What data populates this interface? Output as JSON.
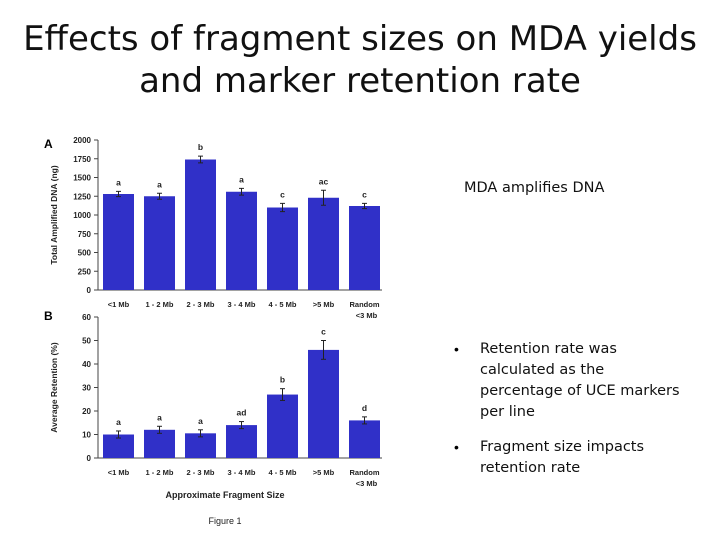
{
  "slide": {
    "title_line1": "Effects of fragment sizes on MDA yields",
    "title_line2": "and marker retention rate",
    "note_mda": "MDA amplifies DNA",
    "bullets": [
      "Retention rate was calculated as the percentage of UCE markers per line",
      "Fragment size impacts retention rate"
    ],
    "bullet_symbol": "•",
    "figure_caption": "Figure 1",
    "bar_color": "#3030c8"
  },
  "chart_data": [
    {
      "type": "bar",
      "panel": "A",
      "categories": [
        "<1 Mb",
        "1 - 2 Mb",
        "2 - 3 Mb",
        "3 - 4 Mb",
        "4 - 5 Mb",
        ">5 Mb",
        "Random <3 Mb"
      ],
      "category_lines": [
        [
          "<1 Mb"
        ],
        [
          "1 - 2 Mb"
        ],
        [
          "2 - 3 Mb"
        ],
        [
          "3 - 4 Mb"
        ],
        [
          "4 - 5 Mb"
        ],
        [
          ">5 Mb"
        ],
        [
          "Random",
          "<3 Mb"
        ]
      ],
      "values": [
        1280,
        1250,
        1740,
        1310,
        1100,
        1230,
        1120
      ],
      "errors": [
        35,
        40,
        45,
        45,
        55,
        100,
        35
      ],
      "letters": [
        "a",
        "a",
        "b",
        "a",
        "c",
        "ac",
        "c"
      ],
      "ylabel": "Total Amplified DNA (ng)",
      "xlabel": "",
      "ylim": [
        0,
        2000
      ],
      "yticks": [
        0,
        250,
        500,
        750,
        1000,
        1250,
        1500,
        1750,
        2000
      ]
    },
    {
      "type": "bar",
      "panel": "B",
      "categories": [
        "<1 Mb",
        "1 - 2 Mb",
        "2 - 3 Mb",
        "3 - 4 Mb",
        "4 - 5 Mb",
        ">5 Mb",
        "Random <3 Mb"
      ],
      "category_lines": [
        [
          "<1 Mb"
        ],
        [
          "1 - 2 Mb"
        ],
        [
          "2 - 3 Mb"
        ],
        [
          "3 - 4 Mb"
        ],
        [
          "4 - 5 Mb"
        ],
        [
          ">5 Mb"
        ],
        [
          "Random",
          "<3 Mb"
        ]
      ],
      "values": [
        10,
        12,
        10.5,
        14,
        27,
        46,
        16
      ],
      "errors": [
        1.5,
        1.5,
        1.5,
        1.5,
        2.5,
        4,
        1.5
      ],
      "letters": [
        "a",
        "a",
        "a",
        "ad",
        "b",
        "c",
        "d"
      ],
      "ylabel": "Average Retention (%)",
      "xlabel": "Approximate Fragment Size",
      "ylim": [
        0,
        60
      ],
      "yticks": [
        0,
        10,
        20,
        30,
        40,
        50,
        60
      ]
    }
  ]
}
